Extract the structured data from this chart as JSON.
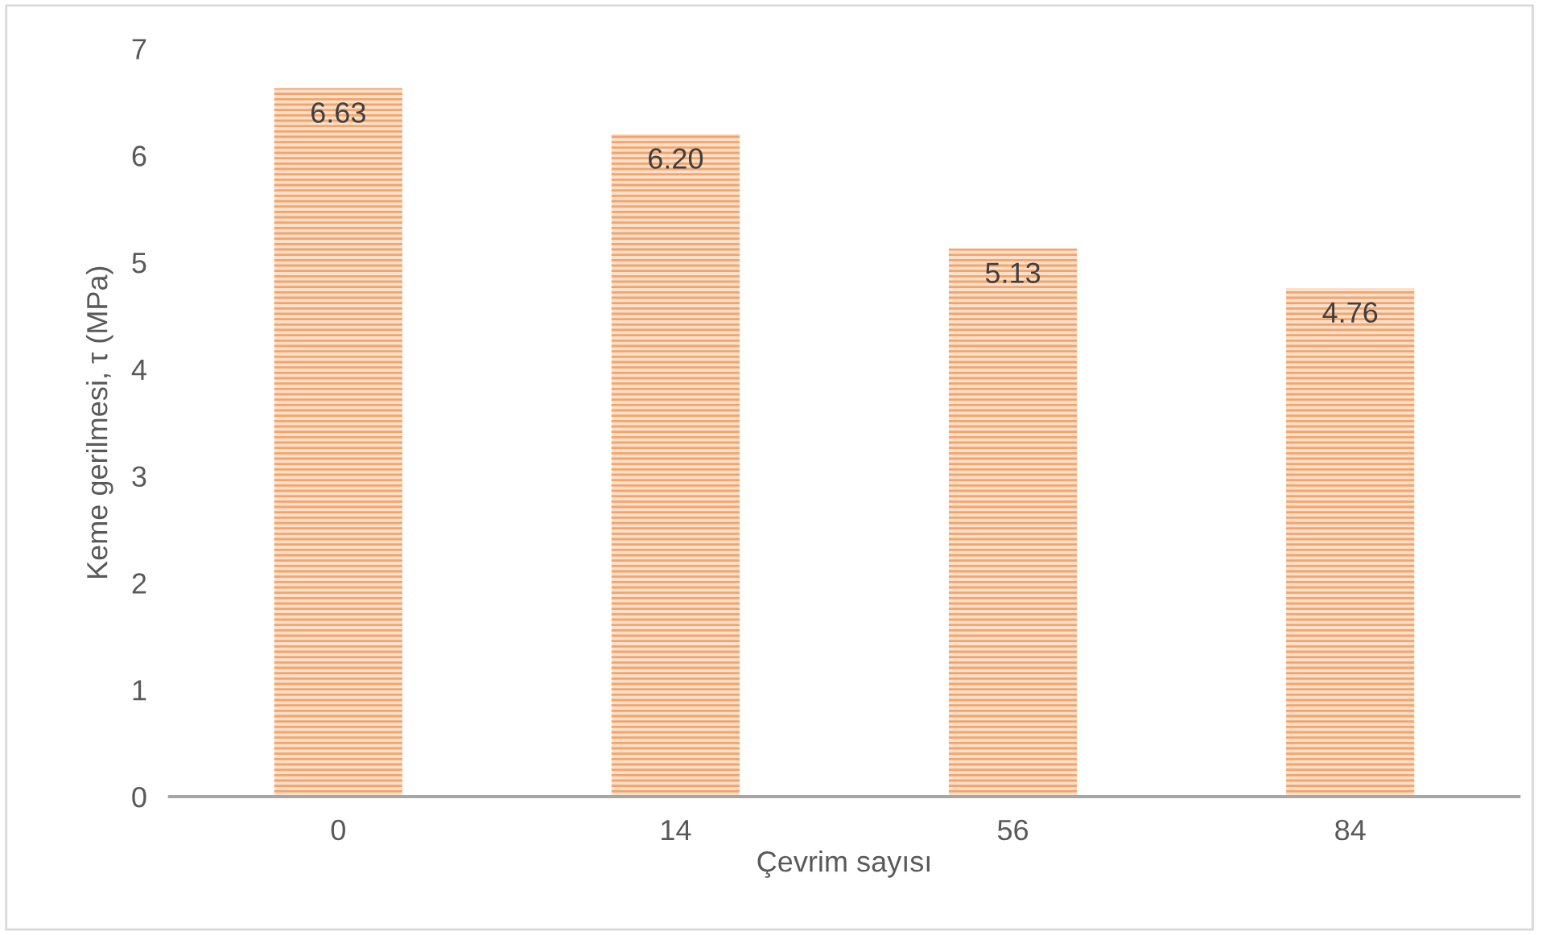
{
  "chart_data": {
    "type": "bar",
    "xlabel": "Çevrim sayısı",
    "ylabel": "Keme gerilmesi, τ (MPa)",
    "categories": [
      "0",
      "14",
      "56",
      "84"
    ],
    "values": [
      6.63,
      6.2,
      5.13,
      4.76
    ],
    "value_labels": [
      "6.63",
      "6.20",
      "5.13",
      "4.76"
    ],
    "color": "#f4a46a",
    "ylim": [
      0,
      7
    ],
    "yticks": [
      0,
      1,
      2,
      3,
      4,
      5,
      6,
      7
    ],
    "grid": false,
    "legend": false
  }
}
